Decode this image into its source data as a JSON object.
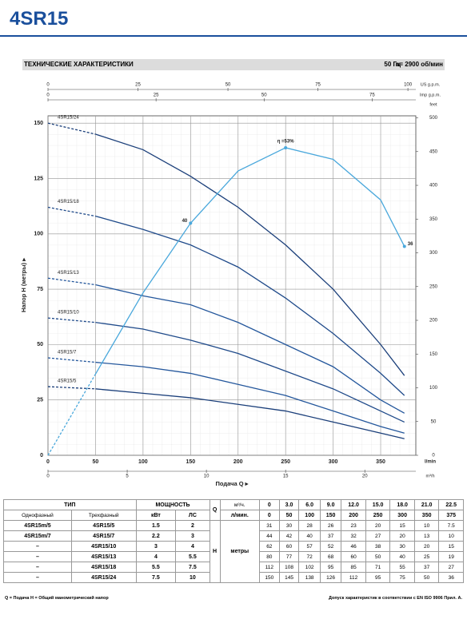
{
  "header": {
    "title": "4SR15"
  },
  "section": {
    "title": "ТЕХНИЧЕСКИЕ ХАРАКТЕРИСТИКИ",
    "frequency": "50 Гц",
    "speed": "n= 2900 об/мин"
  },
  "chart_data": {
    "type": "line",
    "x": [
      0,
      50,
      100,
      150,
      200,
      250,
      300,
      350,
      375
    ],
    "xlim": [
      0,
      387
    ],
    "xticks": [
      0,
      50,
      100,
      150,
      200,
      250,
      300,
      350
    ],
    "x_unit": "l/min",
    "xlabel": "Подача Q ▸",
    "x_us": {
      "label": "US g.p.m.",
      "lim": [
        0,
        102.2
      ],
      "ticks": [
        0,
        25,
        50,
        75,
        100
      ]
    },
    "x_imp": {
      "label": "Imp g.p.m.",
      "lim": [
        0,
        85.1
      ],
      "ticks": [
        0,
        25,
        50,
        75
      ]
    },
    "x_m3h": {
      "label": "m³/h",
      "lim": [
        0,
        23.22
      ],
      "ticks": [
        0,
        5,
        10,
        15,
        20
      ]
    },
    "ylabel": "Напор H (метры) ▸",
    "ylim": [
      0,
      153.3
    ],
    "yticks": [
      0,
      25,
      50,
      75,
      100,
      125,
      150
    ],
    "y2label": "feet",
    "y2lim": [
      0,
      503
    ],
    "y2ticks": [
      0,
      50,
      100,
      150,
      200,
      250,
      300,
      350,
      400,
      450,
      500
    ],
    "etalim": [
      0,
      58.5
    ],
    "grid": true,
    "series": [
      {
        "name": "4SR15/24",
        "color": "#1b3f7a",
        "values": [
          150,
          145,
          138,
          126,
          112,
          95,
          75,
          50,
          36
        ]
      },
      {
        "name": "4SR15/18",
        "color": "#1f4a8a",
        "values": [
          112,
          108,
          102,
          95,
          85,
          71,
          55,
          37,
          27
        ]
      },
      {
        "name": "4SR15/13",
        "color": "#24579c",
        "values": [
          80,
          77,
          72,
          68,
          60,
          50,
          40,
          25,
          19
        ]
      },
      {
        "name": "4SR15/10",
        "color": "#1f4a8a",
        "values": [
          62,
          60,
          57,
          52,
          46,
          38,
          30,
          20,
          15
        ]
      },
      {
        "name": "4SR15/7",
        "color": "#24579c",
        "values": [
          44,
          42,
          40,
          37,
          32,
          27,
          20,
          13,
          10
        ]
      },
      {
        "name": "4SR15/5",
        "color": "#1b3f7a",
        "values": [
          31,
          30,
          28,
          26,
          23,
          20,
          15,
          10,
          7.5
        ]
      },
      {
        "color": "#4aa8dc",
        "axis": "eta",
        "values": [
          0,
          14,
          28,
          40,
          49,
          53,
          51,
          44,
          36
        ],
        "value_labels": [
          null,
          null,
          null,
          "40",
          null,
          "η =53%",
          null,
          null,
          "36"
        ]
      }
    ]
  },
  "table": {
    "headers": {
      "type": "ТИП",
      "power": "МОЩНОСТЬ",
      "single": "Однофазный",
      "three": "Трехфазный",
      "kw": "кВт",
      "hp": "ЛС",
      "q": "Q",
      "m3h_unit": "м³/ч.",
      "lmin_unit": "л/мин.",
      "h": "H",
      "h_unit": "метры"
    },
    "m3h": [
      "0",
      "3.0",
      "6.0",
      "9.0",
      "12.0",
      "15.0",
      "18.0",
      "21.0",
      "22.5"
    ],
    "lmin": [
      0,
      50,
      100,
      150,
      200,
      250,
      300,
      350,
      375
    ],
    "rows": [
      {
        "single": "4SR15m/5",
        "three": "4SR15/5",
        "kw": 1.5,
        "hp": 2,
        "heads": [
          31,
          30,
          28,
          26,
          23,
          20,
          15,
          10,
          7.5
        ]
      },
      {
        "single": "4SR15m/7",
        "three": "4SR15/7",
        "kw": 2.2,
        "hp": 3,
        "heads": [
          44,
          42,
          40,
          37,
          32,
          27,
          20,
          13,
          10
        ]
      },
      {
        "single": "–",
        "three": "4SR15/10",
        "kw": 3,
        "hp": 4,
        "heads": [
          62,
          60,
          57,
          52,
          46,
          38,
          30,
          20,
          15
        ]
      },
      {
        "single": "–",
        "three": "4SR15/13",
        "kw": 4,
        "hp": 5.5,
        "heads": [
          80,
          77,
          72,
          68,
          60,
          50,
          40,
          25,
          19
        ]
      },
      {
        "single": "–",
        "three": "4SR15/18",
        "kw": 5.5,
        "hp": 7.5,
        "heads": [
          112,
          108,
          102,
          95,
          85,
          71,
          55,
          37,
          27
        ]
      },
      {
        "single": "–",
        "three": "4SR15/24",
        "kw": 7.5,
        "hp": 10,
        "heads": [
          150,
          145,
          138,
          126,
          112,
          95,
          75,
          50,
          36
        ]
      }
    ]
  },
  "footer": {
    "legend": "Q = Подача   H = Общий манометрический напор",
    "tolerance": "Допуск характеристик в соответствии с EN ISO 9906 Прил. А."
  }
}
